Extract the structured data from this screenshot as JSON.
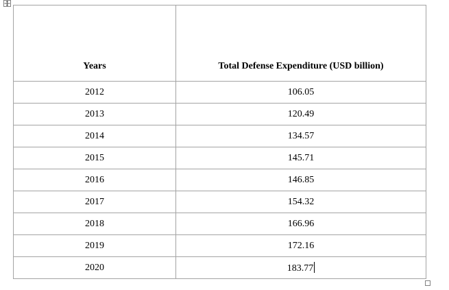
{
  "table": {
    "headers": [
      "Years",
      "Total Defense Expenditure (USD billion)"
    ],
    "rows": [
      [
        "2012",
        "106.05"
      ],
      [
        "2013",
        "120.49"
      ],
      [
        "2014",
        "134.57"
      ],
      [
        "2015",
        "145.71"
      ],
      [
        "2016",
        "146.85"
      ],
      [
        "2017",
        "154.32"
      ],
      [
        "2018",
        "166.96"
      ],
      [
        "2019",
        "172.16"
      ],
      [
        "2020",
        "183.77"
      ]
    ]
  },
  "icons": {
    "move_handle": "table-move-icon",
    "resize_handle": "table-resize-icon"
  }
}
